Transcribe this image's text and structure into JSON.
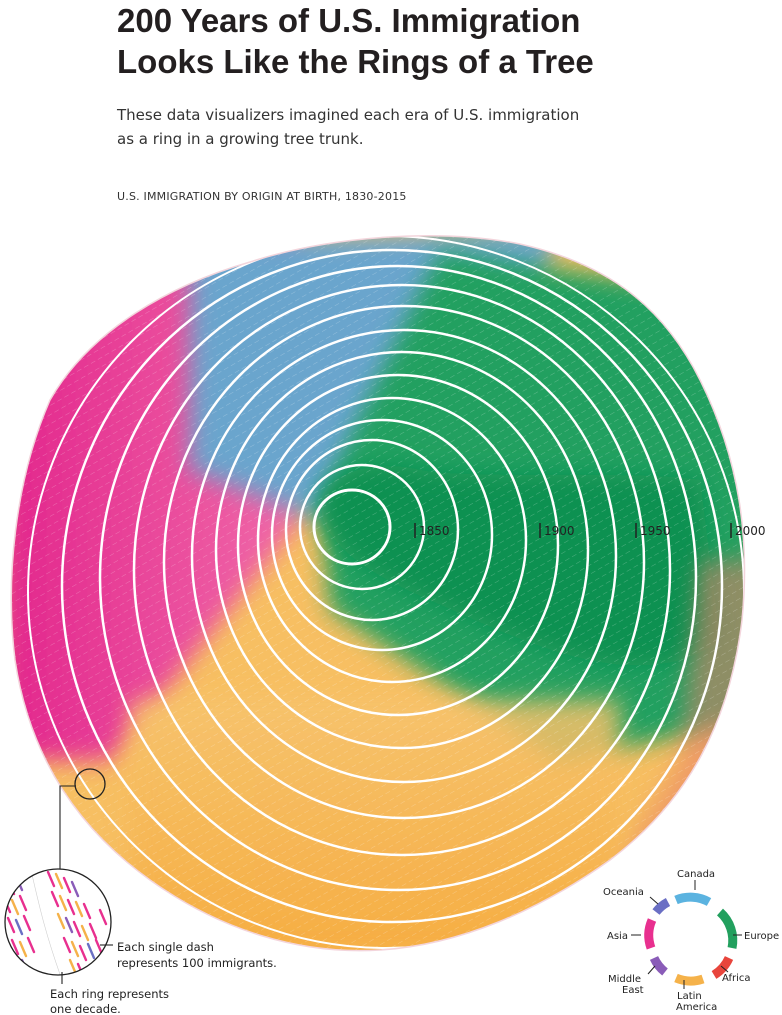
{
  "header": {
    "title_line1": "200 Years of U.S. Immigration",
    "title_line2": "Looks Like the Rings of a Tree",
    "subtitle_line1": "These data visualizers imagined each era of U.S. immigration",
    "subtitle_line2": "as a ring in a growing tree trunk.",
    "chart_label": "U.S. IMMIGRATION BY ORIGIN AT BIRTH, 1830-2015"
  },
  "year_markers": [
    "1850",
    "1900",
    "1950",
    "2000"
  ],
  "annotation": {
    "dash_line1": "Each single dash",
    "dash_line2": "represents 100 immigrants.",
    "ring_line1": "Each ring represents",
    "ring_line2": "one decade."
  },
  "legend": {
    "canada": "Canada",
    "europe": "Europe",
    "africa": "Africa",
    "latin_line1": "Latin",
    "latin_line2": "America",
    "middle_east_line1": "Middle",
    "middle_east_line2": "East",
    "asia": "Asia",
    "oceania": "Oceania"
  },
  "colors": {
    "europe": "#1f9e5a",
    "canada": "#5b9ec9",
    "asia": "#e8308f",
    "latin_america": "#f5b24a",
    "africa": "#e8453c",
    "middle_east": "#8a5cb8",
    "oceania": "#6a6fc4"
  }
}
